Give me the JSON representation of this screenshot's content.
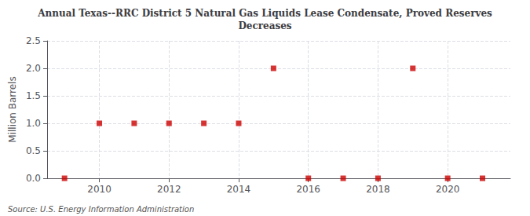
{
  "chart_data": {
    "type": "scatter",
    "title": "Annual Texas--RRC District 5 Natural Gas Liquids Lease Condensate, Proved Reserves\nDecreases",
    "ylabel": "Million Barrels",
    "annotations": [
      "Source: U.S. Energy Information Administration"
    ],
    "x": [
      2009,
      2010,
      2011,
      2012,
      2013,
      2014,
      2015,
      2016,
      2017,
      2018,
      2019,
      2020,
      2021
    ],
    "values": [
      0.0,
      1.0,
      1.0,
      1.0,
      1.0,
      1.0,
      2.0,
      0.0,
      0.0,
      0.0,
      2.0,
      0.0,
      0.0
    ],
    "color": "#cc0000",
    "marker": "square",
    "xlim": [
      2008.5,
      2021.8
    ],
    "xticks": [
      2010,
      2012,
      2014,
      2016,
      2018,
      2020
    ],
    "ylim": [
      0.0,
      2.5
    ],
    "yticks": [
      {
        "value": 0,
        "label": "0.0"
      },
      0.5,
      {
        "value": 1,
        "label": "1.0"
      },
      1.5,
      {
        "value": 2,
        "label": "2.0"
      },
      2.5
    ],
    "grid": true
  }
}
